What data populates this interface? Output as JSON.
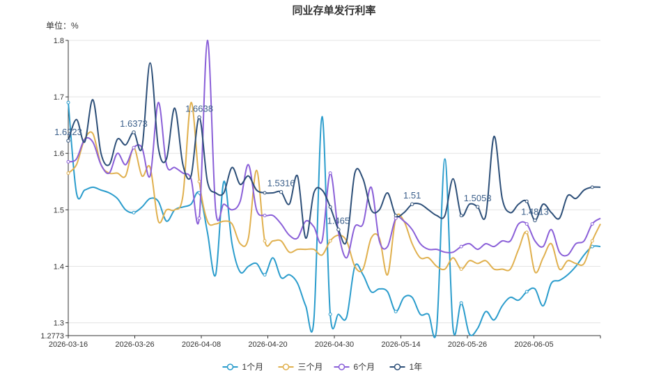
{
  "chart_data": {
    "type": "line",
    "title": "同业存单发行利率",
    "unit_label": "单位：%",
    "ylim": [
      1.2773,
      1.8
    ],
    "y_ticks": [
      "1.2773",
      "1.3",
      "1.4",
      "1.5",
      "1.6",
      "1.7",
      "1.8"
    ],
    "x_ticks": [
      "2026-03-16",
      "2026-03-26",
      "2026-04-08",
      "2026-04-20",
      "2026-04-30",
      "2026-05-14",
      "2026-05-26",
      "2026-06-05"
    ],
    "grid": true,
    "legend_position": "bottom",
    "series": [
      {
        "name": "1个月",
        "color": "#2a9ccc",
        "values": [
          1.69,
          1.53,
          1.535,
          1.54,
          1.535,
          1.53,
          1.52,
          1.5,
          1.495,
          1.505,
          1.52,
          1.515,
          1.48,
          1.5,
          1.505,
          1.51,
          1.53,
          1.46,
          1.385,
          1.55,
          1.44,
          1.39,
          1.4,
          1.405,
          1.385,
          1.415,
          1.38,
          1.385,
          1.37,
          1.33,
          1.305,
          1.665,
          1.315,
          1.315,
          1.31,
          1.4,
          1.385,
          1.355,
          1.36,
          1.355,
          1.32,
          1.345,
          1.345,
          1.315,
          1.315,
          1.29,
          1.59,
          1.29,
          1.335,
          1.28,
          1.29,
          1.32,
          1.305,
          1.33,
          1.345,
          1.34,
          1.355,
          1.36,
          1.33,
          1.37,
          1.375,
          1.385,
          1.4,
          1.42,
          1.435,
          1.435
        ]
      },
      {
        "name": "三个月",
        "color": "#e0b04e",
        "values": [
          1.565,
          1.58,
          1.625,
          1.635,
          1.58,
          1.565,
          1.565,
          1.56,
          1.61,
          1.56,
          1.575,
          1.48,
          1.5,
          1.5,
          1.525,
          1.69,
          1.55,
          1.48,
          1.475,
          1.48,
          1.475,
          1.44,
          1.45,
          1.57,
          1.445,
          1.445,
          1.445,
          1.425,
          1.43,
          1.43,
          1.43,
          1.42,
          1.445,
          1.455,
          1.445,
          1.4,
          1.395,
          1.45,
          1.45,
          1.385,
          1.485,
          1.48,
          1.44,
          1.415,
          1.415,
          1.4,
          1.395,
          1.415,
          1.395,
          1.41,
          1.405,
          1.41,
          1.395,
          1.395,
          1.395,
          1.43,
          1.46,
          1.39,
          1.415,
          1.44,
          1.395,
          1.41,
          1.405,
          1.405,
          1.445,
          1.475
        ]
      },
      {
        "name": "6个月",
        "color": "#8a5fd8",
        "values": [
          1.585,
          1.59,
          1.625,
          1.62,
          1.58,
          1.565,
          1.6,
          1.58,
          1.61,
          1.61,
          1.56,
          1.69,
          1.58,
          1.575,
          1.565,
          1.555,
          1.485,
          1.8,
          1.5,
          1.51,
          1.5,
          1.515,
          1.58,
          1.5,
          1.49,
          1.49,
          1.475,
          1.455,
          1.45,
          1.48,
          1.47,
          1.445,
          1.565,
          1.46,
          1.415,
          1.47,
          1.475,
          1.54,
          1.445,
          1.435,
          1.485,
          1.48,
          1.465,
          1.44,
          1.43,
          1.43,
          1.425,
          1.425,
          1.435,
          1.44,
          1.43,
          1.44,
          1.435,
          1.445,
          1.445,
          1.475,
          1.475,
          1.445,
          1.435,
          1.465,
          1.425,
          1.42,
          1.44,
          1.445,
          1.475,
          1.485
        ]
      },
      {
        "name": "1年",
        "color": "#2d4f78",
        "values": [
          1.6223,
          1.66,
          1.62,
          1.695,
          1.6,
          1.58,
          1.625,
          1.615,
          1.6373,
          1.61,
          1.76,
          1.61,
          1.59,
          1.68,
          1.58,
          1.56,
          1.6638,
          1.55,
          1.53,
          1.53,
          1.575,
          1.545,
          1.56,
          1.535,
          1.53,
          1.53,
          1.5316,
          1.51,
          1.56,
          1.45,
          1.53,
          1.535,
          1.505,
          1.465,
          1.445,
          1.565,
          1.555,
          1.5,
          1.5,
          1.53,
          1.49,
          1.495,
          1.51,
          1.51,
          1.5,
          1.49,
          1.49,
          1.555,
          1.49,
          1.51,
          1.5053,
          1.49,
          1.63,
          1.52,
          1.495,
          1.51,
          1.515,
          1.4813,
          1.51,
          1.495,
          1.485,
          1.525,
          1.52,
          1.535,
          1.54,
          1.54
        ]
      }
    ],
    "annotations": [
      {
        "series": "1年",
        "index": 0,
        "label": "1.6223"
      },
      {
        "series": "1年",
        "index": 8,
        "label": "1.6373"
      },
      {
        "series": "1年",
        "index": 16,
        "label": "1.6638"
      },
      {
        "series": "1年",
        "index": 26,
        "label": "1.5316"
      },
      {
        "series": "1年",
        "index": 33,
        "label": "1.465"
      },
      {
        "series": "1年",
        "index": 42,
        "label": "1.51"
      },
      {
        "series": "1年",
        "index": 50,
        "label": "1.5053"
      },
      {
        "series": "1年",
        "index": 57,
        "label": "1.4813"
      }
    ]
  }
}
